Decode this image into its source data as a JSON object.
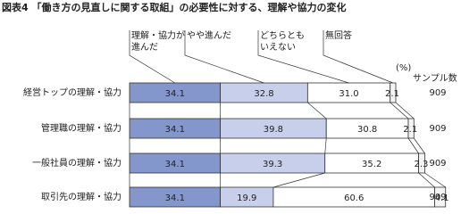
{
  "chart_data": {
    "type": "stacked-bar-100",
    "title": "図表4 「働き方の見直しに関する取組」の必要性に対する、理解や協力の変化",
    "categories": [
      "経営トップの理解・協力",
      "管理職の理解・協力",
      "一般社員の理解・協力",
      "取引先の理解・協力"
    ],
    "series": [
      {
        "name": "理解・協力が進んだ",
        "color": "#8497cc",
        "values": [
          34.1,
          34.1,
          34.1,
          34.1
        ]
      },
      {
        "name": "やや進んだ",
        "color": "#c7cfea",
        "values": [
          32.8,
          39.8,
          39.3,
          19.9
        ]
      },
      {
        "name": "どちらともいえない",
        "color": "#ffffff",
        "values": [
          31.0,
          30.8,
          35.2,
          60.6
        ],
        "value_labels": [
          "31.0",
          "30.8",
          "35.2",
          "60.6"
        ]
      },
      {
        "name": "無回答",
        "color": "#f4f4f4",
        "values": [
          2.1,
          2.1,
          2.3,
          4.1
        ]
      }
    ],
    "xlim": [
      0,
      100
    ],
    "unit_label": "(%)",
    "sample_label": "サンプル数",
    "sample_sizes": [
      909,
      909,
      909,
      909
    ]
  }
}
